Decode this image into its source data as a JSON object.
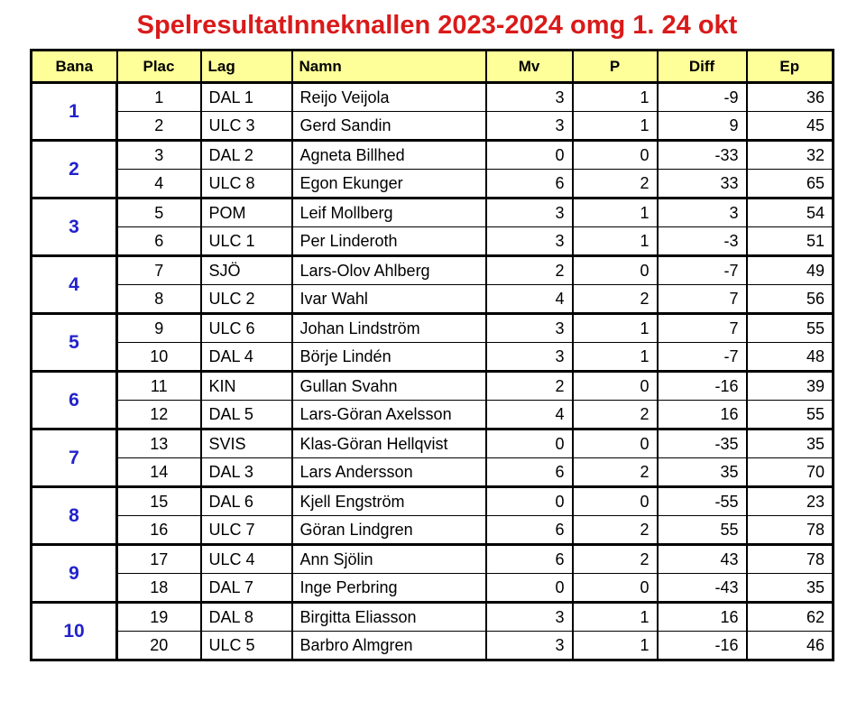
{
  "title": "SpelresultatInneknallen 2023-2024 omg 1. 24 okt",
  "colors": {
    "title_red": "#DA1A1A",
    "header_yellow": "#FFFF99",
    "bana_blue": "#2222CC",
    "border_black": "#000000"
  },
  "table": {
    "headers": [
      {
        "key": "bana",
        "label": "Bana",
        "align": "c"
      },
      {
        "key": "plac",
        "label": "Plac",
        "align": "c"
      },
      {
        "key": "lag",
        "label": "Lag",
        "align": "l"
      },
      {
        "key": "namn",
        "label": "Namn",
        "align": "l"
      },
      {
        "key": "mv",
        "label": "Mv",
        "align": "c"
      },
      {
        "key": "p",
        "label": "P",
        "align": "c"
      },
      {
        "key": "diff",
        "label": "Diff",
        "align": "c"
      },
      {
        "key": "ep",
        "label": "Ep",
        "align": "c"
      }
    ],
    "groups": [
      {
        "bana": "1",
        "rows": [
          {
            "plac": "1",
            "lag": "DAL 1",
            "namn": "Reijo Veijola",
            "mv": "3",
            "p": "1",
            "diff": "-9",
            "ep": "36"
          },
          {
            "plac": "2",
            "lag": "ULC 3",
            "namn": "Gerd Sandin",
            "mv": "3",
            "p": "1",
            "diff": "9",
            "ep": "45"
          }
        ]
      },
      {
        "bana": "2",
        "rows": [
          {
            "plac": "3",
            "lag": "DAL 2",
            "namn": "Agneta Billhed",
            "mv": "0",
            "p": "0",
            "diff": "-33",
            "ep": "32"
          },
          {
            "plac": "4",
            "lag": "ULC 8",
            "namn": "Egon Ekunger",
            "mv": "6",
            "p": "2",
            "diff": "33",
            "ep": "65"
          }
        ]
      },
      {
        "bana": "3",
        "rows": [
          {
            "plac": "5",
            "lag": "POM",
            "namn": "Leif Mollberg",
            "mv": "3",
            "p": "1",
            "diff": "3",
            "ep": "54"
          },
          {
            "plac": "6",
            "lag": "ULC 1",
            "namn": "Per Linderoth",
            "mv": "3",
            "p": "1",
            "diff": "-3",
            "ep": "51"
          }
        ]
      },
      {
        "bana": "4",
        "rows": [
          {
            "plac": "7",
            "lag": "SJÖ",
            "namn": "Lars-Olov Ahlberg",
            "mv": "2",
            "p": "0",
            "diff": "-7",
            "ep": "49"
          },
          {
            "plac": "8",
            "lag": "ULC 2",
            "namn": "Ivar Wahl",
            "mv": "4",
            "p": "2",
            "diff": "7",
            "ep": "56"
          }
        ]
      },
      {
        "bana": "5",
        "rows": [
          {
            "plac": "9",
            "lag": "ULC 6",
            "namn": "Johan Lindström",
            "mv": "3",
            "p": "1",
            "diff": "7",
            "ep": "55"
          },
          {
            "plac": "10",
            "lag": "DAL 4",
            "namn": "Börje Lindén",
            "mv": "3",
            "p": "1",
            "diff": "-7",
            "ep": "48"
          }
        ]
      },
      {
        "bana": "6",
        "rows": [
          {
            "plac": "11",
            "lag": "KIN",
            "namn": "Gullan Svahn",
            "mv": "2",
            "p": "0",
            "diff": "-16",
            "ep": "39"
          },
          {
            "plac": "12",
            "lag": "DAL 5",
            "namn": "Lars-Göran Axelsson",
            "mv": "4",
            "p": "2",
            "diff": "16",
            "ep": "55"
          }
        ]
      },
      {
        "bana": "7",
        "rows": [
          {
            "plac": "13",
            "lag": "SVIS",
            "namn": "Klas-Göran Hellqvist",
            "mv": "0",
            "p": "0",
            "diff": "-35",
            "ep": "35"
          },
          {
            "plac": "14",
            "lag": "DAL 3",
            "namn": "Lars Andersson",
            "mv": "6",
            "p": "2",
            "diff": "35",
            "ep": "70"
          }
        ]
      },
      {
        "bana": "8",
        "rows": [
          {
            "plac": "15",
            "lag": "DAL 6",
            "namn": "Kjell Engström",
            "mv": "0",
            "p": "0",
            "diff": "-55",
            "ep": "23"
          },
          {
            "plac": "16",
            "lag": "ULC 7",
            "namn": "Göran Lindgren",
            "mv": "6",
            "p": "2",
            "diff": "55",
            "ep": "78"
          }
        ]
      },
      {
        "bana": "9",
        "rows": [
          {
            "plac": "17",
            "lag": "ULC 4",
            "namn": "Ann Sjölin",
            "mv": "6",
            "p": "2",
            "diff": "43",
            "ep": "78"
          },
          {
            "plac": "18",
            "lag": "DAL 7",
            "namn": "Inge Perbring",
            "mv": "0",
            "p": "0",
            "diff": "-43",
            "ep": "35"
          }
        ]
      },
      {
        "bana": "10",
        "rows": [
          {
            "plac": "19",
            "lag": "DAL 8",
            "namn": "Birgitta Eliasson",
            "mv": "3",
            "p": "1",
            "diff": "16",
            "ep": "62"
          },
          {
            "plac": "20",
            "lag": "ULC 5",
            "namn": "Barbro Almgren",
            "mv": "3",
            "p": "1",
            "diff": "-16",
            "ep": "46"
          }
        ]
      }
    ]
  }
}
